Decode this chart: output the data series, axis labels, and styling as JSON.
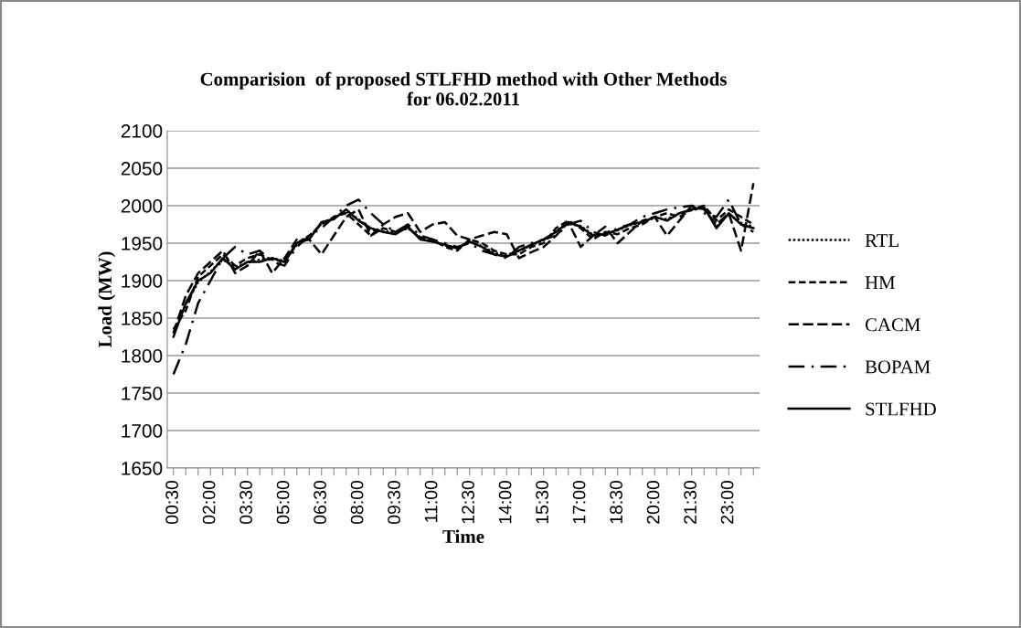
{
  "chart_data": {
    "type": "line",
    "title": "Comparision  of proposed STLFHD method with Other Methods\nfor 06.02.2011",
    "xlabel": "Time",
    "ylabel": "Load (MW)",
    "categories": [
      "00:30",
      null,
      null,
      "02:00",
      null,
      null,
      "03:30",
      null,
      null,
      "05:00",
      null,
      null,
      "06:30",
      null,
      null,
      "08:00",
      null,
      null,
      "09:30",
      null,
      null,
      "11:00",
      null,
      null,
      "12:30",
      null,
      null,
      "14:00",
      null,
      null,
      "15:30",
      null,
      null,
      "17:00",
      null,
      null,
      "18:30",
      null,
      null,
      "20:00",
      null,
      null,
      "21:30",
      null,
      null,
      "23:00",
      null,
      null
    ],
    "ylim": [
      1650,
      2100
    ],
    "yticks": [
      1650,
      1700,
      1750,
      1800,
      1850,
      1900,
      1950,
      2000,
      2050,
      2100
    ],
    "grid": "y",
    "legend": "right",
    "marker": "none",
    "series": [
      {
        "name": "RTL",
        "color": "#000000",
        "line_style": "dotted",
        "values": [
          1830,
          1868,
          1898,
          1912,
          1928,
          1918,
          1924,
          1928,
          1930,
          1926,
          1948,
          1958,
          1976,
          1984,
          1993,
          1982,
          1968,
          1966,
          1964,
          1970,
          1957,
          1952,
          1947,
          1944,
          1952,
          1946,
          1937,
          1934,
          1940,
          1947,
          1954,
          1966,
          1976,
          1973,
          1961,
          1962,
          1967,
          1974,
          1978,
          1984,
          1982,
          1990,
          1994,
          1997,
          1972,
          1989,
          1977,
          1972
        ]
      },
      {
        "name": "HM",
        "color": "#000000",
        "line_style": "dashed",
        "values": [
          1835,
          1860,
          1905,
          1920,
          1935,
          1920,
          1930,
          1935,
          1928,
          1925,
          1950,
          1960,
          1975,
          1985,
          1990,
          1975,
          1960,
          1970,
          1965,
          1970,
          1958,
          1955,
          1945,
          1940,
          1955,
          1950,
          1940,
          1935,
          1935,
          1945,
          1950,
          1970,
          1980,
          1970,
          1955,
          1965,
          1962,
          1970,
          1975,
          1985,
          1990,
          1985,
          1995,
          2000,
          1980,
          1995,
          1985,
          1975
        ]
      },
      {
        "name": "CACM",
        "color": "#000000",
        "line_style": "long_dashed",
        "values": [
          1830,
          1880,
          1910,
          1925,
          1940,
          1910,
          1920,
          1940,
          1910,
          1930,
          1955,
          1955,
          1935,
          1960,
          1985,
          1995,
          1960,
          1975,
          1985,
          1990,
          1965,
          1975,
          1978,
          1960,
          1955,
          1960,
          1965,
          1962,
          1930,
          1938,
          1945,
          1960,
          1978,
          1945,
          1960,
          1972,
          1950,
          1965,
          1980,
          1985,
          1960,
          1980,
          2000,
          1995,
          1975,
          1990,
          1940,
          2030
        ]
      },
      {
        "name": "BOPAM",
        "color": "#000000",
        "line_style": "dashdot",
        "values": [
          1775,
          1815,
          1870,
          1900,
          1930,
          1945,
          1935,
          1940,
          1925,
          1920,
          1945,
          1960,
          1970,
          1985,
          2000,
          2008,
          1990,
          1975,
          1965,
          1975,
          1960,
          1955,
          1950,
          1945,
          1950,
          1940,
          1935,
          1930,
          1945,
          1950,
          1955,
          1960,
          1975,
          1980,
          1965,
          1960,
          1970,
          1975,
          1985,
          1990,
          1995,
          1998,
          2000,
          1990,
          1985,
          2008,
          1975,
          1965
        ]
      },
      {
        "name": "STLFHD",
        "color": "#000000",
        "line_style": "solid",
        "values": [
          1825,
          1870,
          1900,
          1910,
          1930,
          1915,
          1925,
          1925,
          1930,
          1925,
          1950,
          1955,
          1978,
          1982,
          1995,
          1980,
          1970,
          1965,
          1962,
          1972,
          1955,
          1952,
          1948,
          1943,
          1952,
          1945,
          1935,
          1932,
          1940,
          1948,
          1955,
          1965,
          1978,
          1972,
          1960,
          1962,
          1968,
          1975,
          1978,
          1985,
          1980,
          1990,
          1995,
          1998,
          1970,
          1990,
          1975,
          1970
        ]
      }
    ]
  }
}
